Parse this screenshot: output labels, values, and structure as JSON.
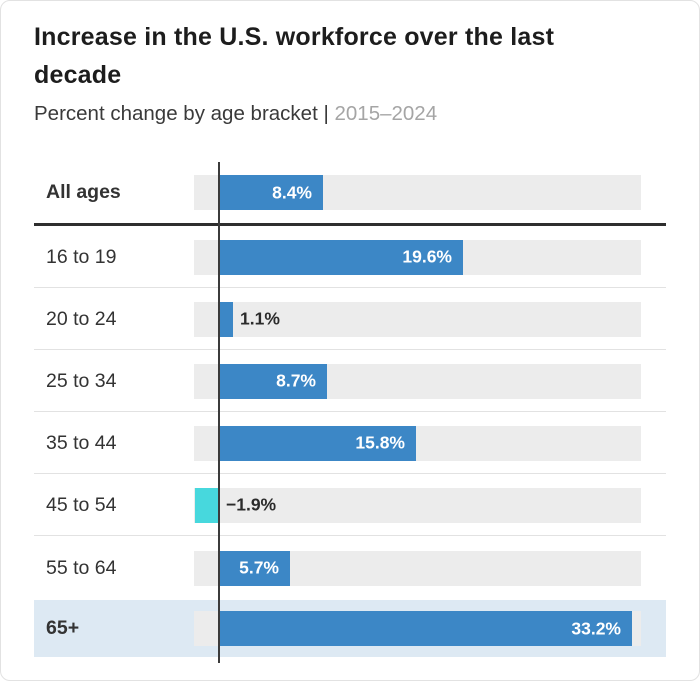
{
  "header": {
    "title": "Increase in the U.S. workforce over the last decade",
    "subtitle_dark": "Percent change by age bracket |",
    "subtitle_light": "2015–2024"
  },
  "chart_data": {
    "type": "bar",
    "orientation": "horizontal",
    "title": "Increase in the U.S. workforce over the last decade",
    "subtitle": "Percent change by age bracket | 2015–2024",
    "xlabel": "",
    "ylabel": "",
    "xlim": [
      -2.0,
      34.1
    ],
    "grid": false,
    "legend": false,
    "categories": [
      "All ages",
      "16 to 19",
      "20 to 24",
      "25 to 34",
      "35 to 44",
      "45 to 54",
      "55 to 64",
      "65+"
    ],
    "values": [
      8.4,
      19.6,
      1.1,
      8.7,
      15.8,
      -1.9,
      5.7,
      33.2
    ],
    "value_labels": [
      "8.4%",
      "19.6%",
      "1.1%",
      "8.7%",
      "15.8%",
      "−1.9%",
      "5.7%",
      "33.2%"
    ],
    "bold_rows": [
      "All ages",
      "65+"
    ],
    "highlight_row": "65+",
    "separator_after": "All ages",
    "colors": {
      "positive_bar": "#3c87c6",
      "negative_bar": "#47d8dd",
      "track": "#ececec",
      "highlight_bg": "#dde9f3",
      "baseline": "#3b3b3b",
      "strong_divider": "#2e2e2e",
      "light_divider": "#e2e2e2",
      "label_inside_bar": "#ffffff",
      "label_outside_bar": "#2b2b2b"
    }
  }
}
